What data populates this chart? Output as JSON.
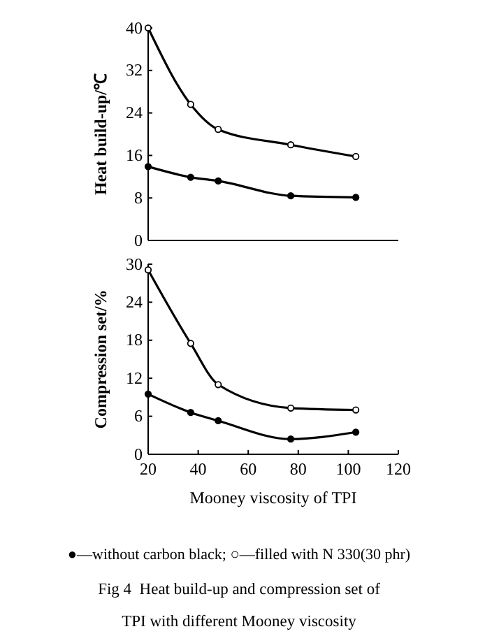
{
  "chart_data": [
    {
      "type": "line",
      "ylabel": "Heat build-up/℃",
      "x": [
        20,
        37,
        48,
        77,
        103
      ],
      "xlim": [
        20,
        120
      ],
      "xticks": [
        20,
        40,
        60,
        80,
        100,
        120
      ],
      "ylim": [
        0,
        40
      ],
      "yticks": [
        0,
        8,
        16,
        24,
        32,
        40
      ],
      "tick_labels": "y",
      "marker": "circle",
      "line_style": "solid",
      "grid": false,
      "series": [
        {
          "color": "#000000",
          "values": [
            13.9,
            11.9,
            11.2,
            8.4,
            8.1
          ]
        },
        {
          "color": "#000000",
          "values": [
            40,
            25.6,
            20.9,
            18,
            15.8
          ]
        }
      ]
    },
    {
      "type": "line",
      "ylabel": "Compression set/%",
      "xlabel": "Mooney viscosity of TPI",
      "title": "Fig 4  Heat build-up and compression set of TPI with different Mooney viscosity",
      "x": [
        20,
        37,
        48,
        77,
        103
      ],
      "xlim": [
        20,
        120
      ],
      "xticks": [
        20,
        40,
        60,
        80,
        100,
        120
      ],
      "ylim": [
        0,
        30
      ],
      "yticks": [
        0,
        6,
        12,
        18,
        24,
        30
      ],
      "marker": "circle",
      "line_style": "solid",
      "grid": false,
      "annotations": [
        "●—without carbon black; ○—filled with N 330(30 phr)"
      ],
      "series": [
        {
          "color": "#000000",
          "values": [
            9.5,
            6.6,
            5.3,
            2.4,
            3.5
          ]
        },
        {
          "color": "#000000",
          "values": [
            29.1,
            17.5,
            11,
            7.3,
            7
          ]
        }
      ]
    }
  ]
}
